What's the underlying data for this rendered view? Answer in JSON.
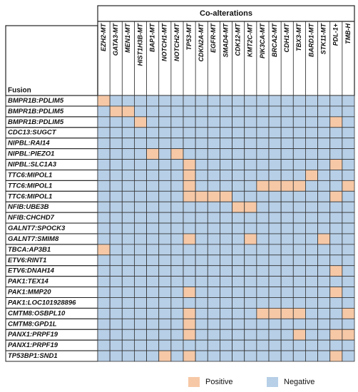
{
  "chart_data": {
    "type": "heatmap",
    "title": "Co-alterations",
    "row_label": "Fusion",
    "categories": [
      "EZH2-MT",
      "GATA3-MT",
      "MEN1-MT",
      "HIST1H3B-MT",
      "BAP1-MT",
      "NOTCH1-MT",
      "NOTCH2-MT",
      "TP53-MT",
      "CDKN2A-MT",
      "EGFR-MT",
      "SMAD4-MT",
      "CDK12-MT",
      "KMT2C-MT",
      "PIK3CA-MT",
      "BRCA2-MT",
      "CDH1-MT",
      "TBX3-MT",
      "BARD1-MT",
      "STK11-MT",
      "PDL-1+",
      "TMB-H"
    ],
    "rows": [
      "BMPR1B:PDLIM5",
      "BMPR1B:PDLIM5",
      "BMPR1B:PDLIM5",
      "CDC13:SUGCT",
      "NIPBL:RAI14",
      "NIPBL:PIEZO1",
      "NIPBL:SLC1A3",
      "TTC6:MIPOL1",
      "TTC6:MIPOL1",
      "TTC6:MIPOL1",
      "NFIB:UBE3B",
      "NFIB:CHCHD7",
      "GALNT7:SPOCK3",
      "GALNT7:SMIM8",
      "TBCA:AP3B1",
      "ETV6:RINT1",
      "ETV6:DNAH14",
      "PAK1:TEX14",
      "PAK1:MMP20",
      "PAK1:LOC101928896",
      "CMTM8:OSBPL10",
      "CMTM8:GPD1L",
      "PANX1:PRPF19",
      "PANX1:PRPF19",
      "TP53BP1:SND1"
    ],
    "values": [
      [
        1,
        0,
        0,
        0,
        0,
        0,
        0,
        0,
        0,
        0,
        0,
        0,
        0,
        0,
        0,
        0,
        0,
        0,
        0,
        0,
        0
      ],
      [
        0,
        1,
        1,
        0,
        0,
        0,
        0,
        0,
        0,
        0,
        0,
        0,
        0,
        0,
        0,
        0,
        0,
        0,
        0,
        0,
        0
      ],
      [
        0,
        0,
        0,
        1,
        0,
        0,
        0,
        0,
        0,
        0,
        0,
        0,
        0,
        0,
        0,
        0,
        0,
        0,
        0,
        1,
        0
      ],
      [
        0,
        0,
        0,
        0,
        0,
        0,
        0,
        0,
        0,
        0,
        0,
        0,
        0,
        0,
        0,
        0,
        0,
        0,
        0,
        0,
        0
      ],
      [
        0,
        0,
        0,
        0,
        0,
        0,
        0,
        0,
        0,
        0,
        0,
        0,
        0,
        0,
        0,
        0,
        0,
        0,
        0,
        0,
        0
      ],
      [
        0,
        0,
        0,
        0,
        1,
        0,
        1,
        0,
        0,
        0,
        0,
        0,
        0,
        0,
        0,
        0,
        0,
        0,
        0,
        0,
        0
      ],
      [
        0,
        0,
        0,
        0,
        0,
        0,
        0,
        1,
        0,
        0,
        0,
        0,
        0,
        0,
        0,
        0,
        0,
        0,
        0,
        1,
        0
      ],
      [
        0,
        0,
        0,
        0,
        0,
        0,
        0,
        1,
        0,
        0,
        0,
        0,
        0,
        0,
        0,
        0,
        0,
        1,
        0,
        0,
        0
      ],
      [
        0,
        0,
        0,
        0,
        0,
        0,
        0,
        1,
        0,
        0,
        0,
        0,
        0,
        1,
        1,
        1,
        1,
        0,
        0,
        0,
        1
      ],
      [
        0,
        0,
        0,
        0,
        0,
        0,
        0,
        1,
        1,
        1,
        1,
        0,
        0,
        0,
        0,
        0,
        0,
        0,
        0,
        1,
        0
      ],
      [
        0,
        0,
        0,
        0,
        0,
        0,
        0,
        0,
        0,
        0,
        0,
        1,
        1,
        0,
        0,
        0,
        0,
        0,
        0,
        0,
        0
      ],
      [
        0,
        0,
        0,
        0,
        0,
        0,
        0,
        0,
        0,
        0,
        0,
        0,
        0,
        0,
        0,
        0,
        0,
        0,
        0,
        0,
        0
      ],
      [
        0,
        0,
        0,
        0,
        0,
        0,
        0,
        0,
        0,
        0,
        0,
        0,
        0,
        0,
        0,
        0,
        0,
        0,
        0,
        0,
        0
      ],
      [
        0,
        0,
        0,
        0,
        0,
        0,
        0,
        1,
        0,
        0,
        0,
        0,
        1,
        0,
        0,
        0,
        0,
        0,
        1,
        0,
        0
      ],
      [
        1,
        0,
        0,
        0,
        0,
        0,
        0,
        0,
        0,
        0,
        0,
        0,
        0,
        0,
        0,
        0,
        0,
        0,
        0,
        0,
        0
      ],
      [
        0,
        0,
        0,
        0,
        0,
        0,
        0,
        0,
        0,
        0,
        0,
        0,
        0,
        0,
        0,
        0,
        0,
        0,
        0,
        0,
        0
      ],
      [
        0,
        0,
        0,
        0,
        0,
        0,
        0,
        0,
        0,
        0,
        0,
        0,
        0,
        0,
        0,
        0,
        0,
        0,
        0,
        1,
        0
      ],
      [
        0,
        0,
        0,
        0,
        0,
        0,
        0,
        0,
        0,
        0,
        0,
        0,
        0,
        0,
        0,
        0,
        0,
        0,
        0,
        0,
        0
      ],
      [
        0,
        0,
        0,
        0,
        0,
        0,
        0,
        1,
        0,
        0,
        0,
        0,
        0,
        0,
        0,
        0,
        0,
        0,
        0,
        1,
        0
      ],
      [
        0,
        0,
        0,
        0,
        0,
        0,
        0,
        0,
        0,
        0,
        0,
        0,
        0,
        0,
        0,
        0,
        0,
        0,
        0,
        0,
        0
      ],
      [
        0,
        0,
        0,
        0,
        0,
        0,
        0,
        1,
        0,
        0,
        0,
        0,
        0,
        1,
        1,
        1,
        1,
        0,
        0,
        0,
        1
      ],
      [
        0,
        0,
        0,
        0,
        0,
        0,
        0,
        1,
        0,
        0,
        0,
        0,
        0,
        0,
        0,
        0,
        0,
        0,
        0,
        0,
        0
      ],
      [
        0,
        0,
        0,
        0,
        0,
        0,
        0,
        1,
        0,
        0,
        0,
        0,
        0,
        0,
        0,
        0,
        1,
        0,
        0,
        1,
        1
      ],
      [
        0,
        0,
        0,
        0,
        0,
        0,
        0,
        0,
        0,
        0,
        0,
        0,
        0,
        0,
        0,
        0,
        0,
        0,
        0,
        0,
        0
      ],
      [
        0,
        0,
        0,
        0,
        0,
        1,
        0,
        1,
        0,
        0,
        0,
        0,
        0,
        0,
        0,
        0,
        0,
        0,
        0,
        1,
        0
      ]
    ],
    "legend": [
      {
        "name": "Positive",
        "color": "#f6c8a6",
        "value": 1
      },
      {
        "name": "Negative",
        "color": "#b7cfe7",
        "value": 0
      }
    ]
  }
}
